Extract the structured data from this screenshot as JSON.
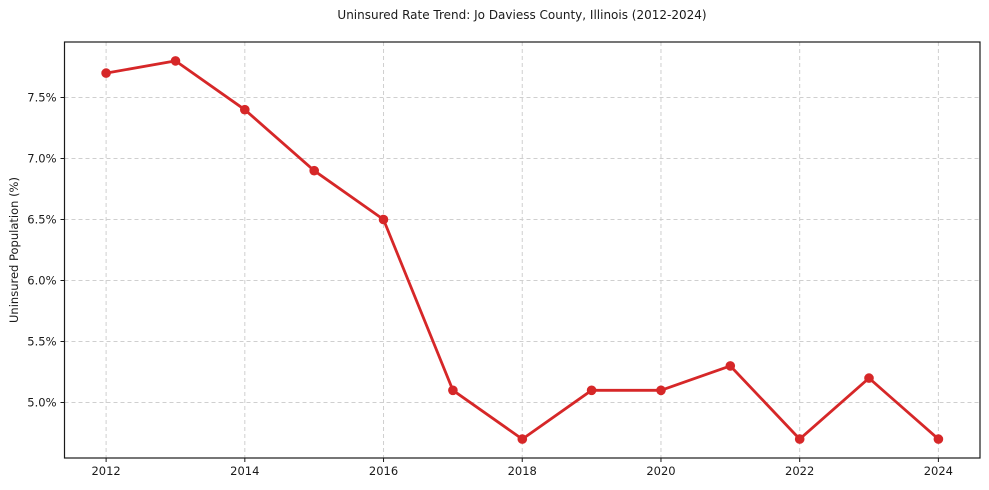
{
  "chart_data": {
    "type": "line",
    "title": "Uninsured Rate Trend: Jo Daviess County, Illinois (2012-2024)",
    "xlabel": "",
    "ylabel": "Uninsured Population (%)",
    "x": [
      2012,
      2013,
      2014,
      2015,
      2016,
      2017,
      2018,
      2019,
      2020,
      2021,
      2022,
      2023,
      2024
    ],
    "values": [
      7.7,
      7.8,
      7.4,
      6.9,
      6.5,
      5.1,
      4.7,
      5.1,
      5.1,
      5.3,
      4.7,
      5.2,
      4.7
    ],
    "xticks": [
      2012,
      2014,
      2016,
      2018,
      2020,
      2022,
      2024
    ],
    "yticks": [
      5.0,
      5.5,
      6.0,
      6.5,
      7.0,
      7.5
    ],
    "ytick_suffix": "%",
    "xlim": [
      2011.4,
      2024.6
    ],
    "ylim": [
      4.545,
      7.955
    ],
    "grid": true,
    "legend": "none",
    "line_color": "#d62728",
    "marker": "circle",
    "grid_color": "#cfcfcf",
    "spine_color": "#1a1a1a",
    "background_color": "#ffffff"
  }
}
